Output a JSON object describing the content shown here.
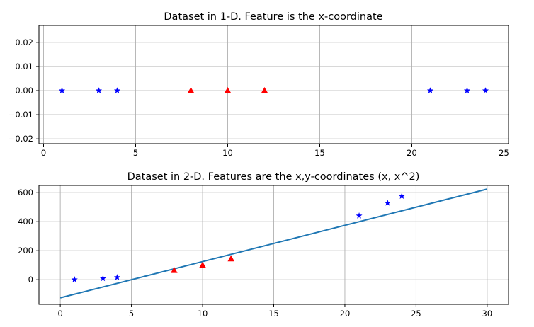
{
  "chart_data": [
    {
      "type": "scatter",
      "title": "Dataset in 1-D. Feature is the x-coordinate",
      "xlabel": "",
      "ylabel": "",
      "xlim": [
        -0.25,
        25.25
      ],
      "ylim": [
        -0.022,
        0.027
      ],
      "xticks": [
        "0",
        "5",
        "10",
        "15",
        "20",
        "25"
      ],
      "yticks": [
        "−0.02",
        "−0.01",
        "0.00",
        "0.01",
        "0.02"
      ],
      "grid": true,
      "series": [
        {
          "marker": "star",
          "color": "#0000ff",
          "points": [
            [
              1,
              0
            ],
            [
              3,
              0
            ],
            [
              4,
              0
            ],
            [
              21,
              0
            ],
            [
              23,
              0
            ],
            [
              24,
              0
            ]
          ]
        },
        {
          "marker": "triangle",
          "color": "#ff0000",
          "points": [
            [
              8,
              0
            ],
            [
              10,
              0
            ],
            [
              12,
              0
            ]
          ]
        }
      ]
    },
    {
      "type": "scatter",
      "title": "Dataset in 2-D. Features are the x,y-coordinates (x, x^2)",
      "xlabel": "",
      "ylabel": "",
      "xlim": [
        -1.5,
        31.5
      ],
      "ylim": [
        -170,
        650
      ],
      "xticks": [
        "0",
        "5",
        "10",
        "15",
        "20",
        "25",
        "30"
      ],
      "yticks": [
        "0",
        "200",
        "400",
        "600"
      ],
      "grid": true,
      "series": [
        {
          "marker": "star",
          "color": "#0000ff",
          "points": [
            [
              1,
              1
            ],
            [
              3,
              9
            ],
            [
              4,
              16
            ],
            [
              21,
              441
            ],
            [
              23,
              529
            ],
            [
              24,
              576
            ]
          ]
        },
        {
          "marker": "triangle",
          "color": "#ff0000",
          "points": [
            [
              8,
              64
            ],
            [
              10,
              100
            ],
            [
              12,
              144
            ]
          ]
        }
      ],
      "line": {
        "color": "#1f77b4",
        "points": [
          [
            0,
            -125
          ],
          [
            30,
            625
          ]
        ]
      }
    }
  ]
}
